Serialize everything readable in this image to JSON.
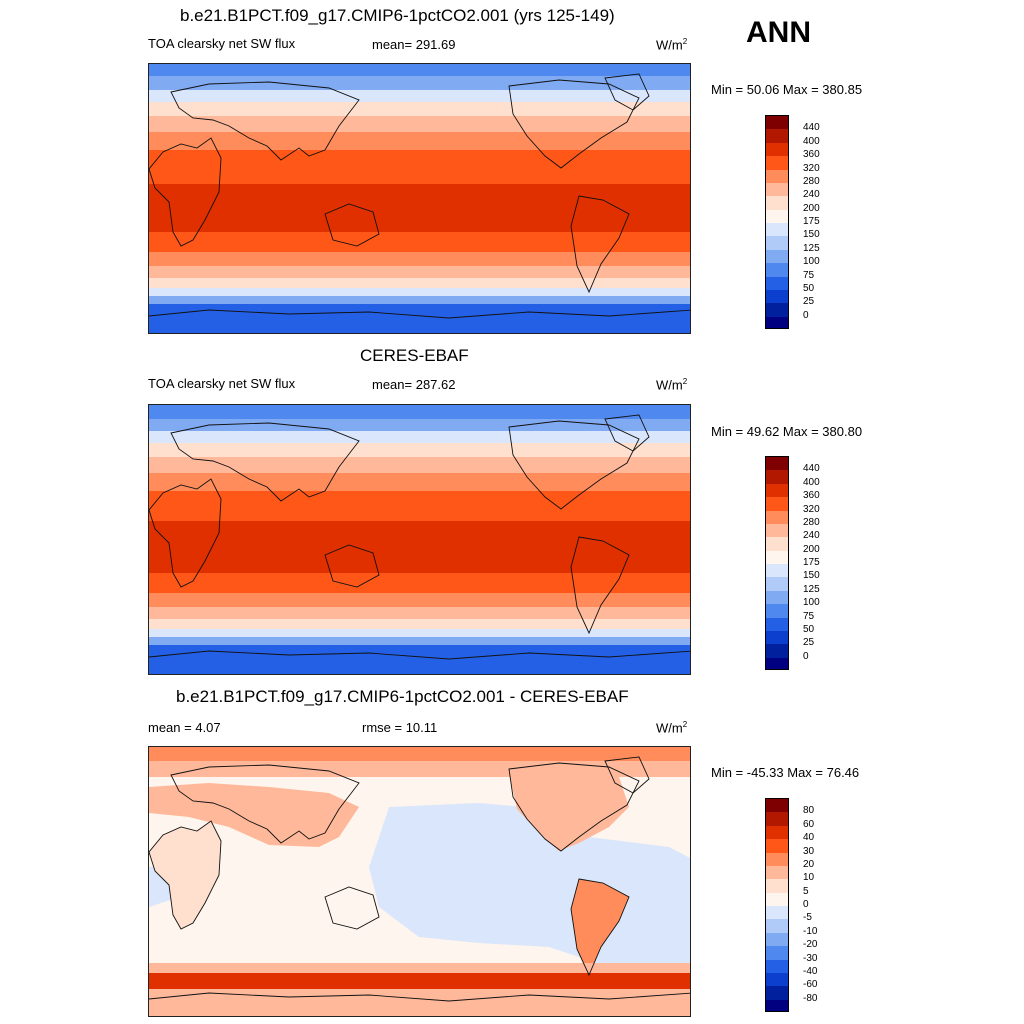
{
  "season": "ANN",
  "panels": [
    {
      "title": "b.e21.B1PCT.f09_g17.CMIP6-1pctCO2.001 (yrs 125-149)",
      "left_label": "TOA clearsky net SW flux",
      "center_label": "mean= 291.69",
      "units": "W/m",
      "units_sup": "2",
      "minmax": "Min =  50.06 Max = 380.85",
      "colorbar": {
        "labels": [
          "440",
          "400",
          "360",
          "320",
          "280",
          "240",
          "200",
          "175",
          "150",
          "125",
          "100",
          "75",
          "50",
          "25",
          "0"
        ],
        "colors": [
          "#7f0000",
          "#b21800",
          "#e03000",
          "#ff5717",
          "#ff8c5a",
          "#ffb89a",
          "#ffe0cf",
          "#fdf5ee",
          "#d9e6fb",
          "#b0cbf7",
          "#80aaf2",
          "#4f88ee",
          "#2460e6",
          "#0d3fce",
          "#00209e",
          "#000080"
        ]
      }
    },
    {
      "title": "CERES-EBAF",
      "left_label": "TOA clearsky net SW flux",
      "center_label": "mean= 287.62",
      "units": "W/m",
      "units_sup": "2",
      "minmax": "Min =  49.62 Max = 380.80",
      "colorbar": {
        "labels": [
          "440",
          "400",
          "360",
          "320",
          "280",
          "240",
          "200",
          "175",
          "150",
          "125",
          "100",
          "75",
          "50",
          "25",
          "0"
        ],
        "colors": [
          "#7f0000",
          "#b21800",
          "#e03000",
          "#ff5717",
          "#ff8c5a",
          "#ffb89a",
          "#ffe0cf",
          "#fdf5ee",
          "#d9e6fb",
          "#b0cbf7",
          "#80aaf2",
          "#4f88ee",
          "#2460e6",
          "#0d3fce",
          "#00209e",
          "#000080"
        ]
      }
    },
    {
      "title": "b.e21.B1PCT.f09_g17.CMIP6-1pctCO2.001 - CERES-EBAF",
      "left_label": "mean =   4.07",
      "center_label": "rmse =  10.11",
      "units": "W/m",
      "units_sup": "2",
      "minmax": "Min = -45.33 Max =  76.46",
      "colorbar": {
        "labels": [
          "80",
          "60",
          "40",
          "30",
          "20",
          "10",
          "5",
          "0",
          "-5",
          "-10",
          "-20",
          "-30",
          "-40",
          "-60",
          "-80"
        ],
        "colors": [
          "#7f0000",
          "#b21800",
          "#e03000",
          "#ff5717",
          "#ff8c5a",
          "#ffb89a",
          "#ffe0cf",
          "#fdf5ee",
          "#d9e6fb",
          "#b0cbf7",
          "#80aaf2",
          "#4f88ee",
          "#2460e6",
          "#0d3fce",
          "#00209e",
          "#000080"
        ]
      }
    }
  ]
}
